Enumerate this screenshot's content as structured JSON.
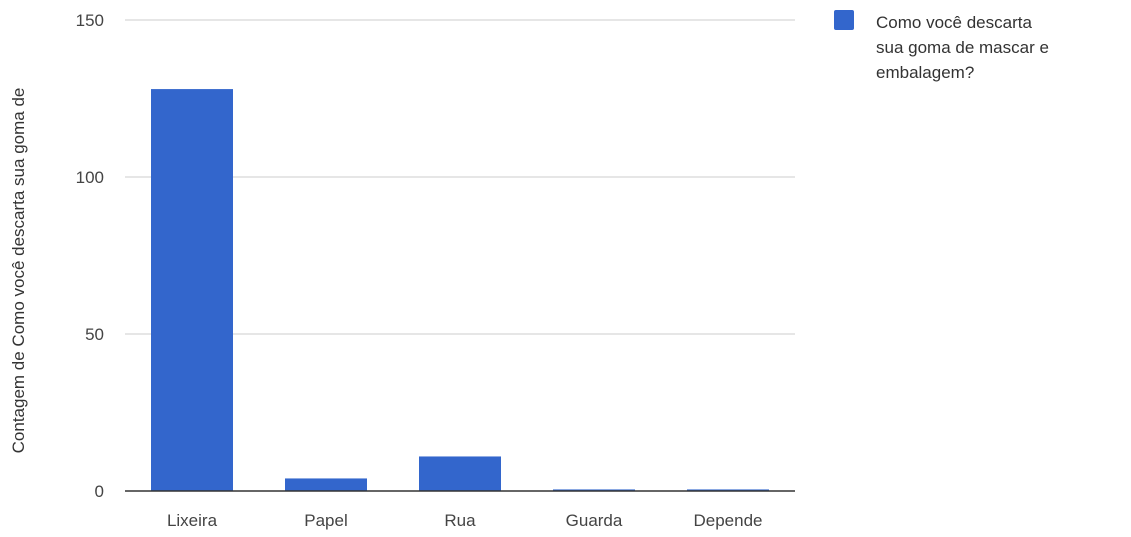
{
  "chart_data": {
    "type": "bar",
    "categories": [
      "Lixeira",
      "Papel",
      "Rua",
      "Guarda",
      "Depende"
    ],
    "series": [
      {
        "name": "Como você descarta sua goma de mascar e embalagem?",
        "values": [
          128,
          4,
          11,
          0.5,
          0.5
        ],
        "color": "#3366cc"
      }
    ],
    "ylabel": "Contagem de Como você descarta sua goma de",
    "xlabel": "",
    "ylim": [
      0,
      150
    ],
    "yticks": [
      0,
      50,
      100,
      150
    ],
    "grid": true,
    "legend_position": "right",
    "legend_lines": [
      "Como você descarta",
      "sua goma de mascar e",
      "embalagem?"
    ]
  }
}
